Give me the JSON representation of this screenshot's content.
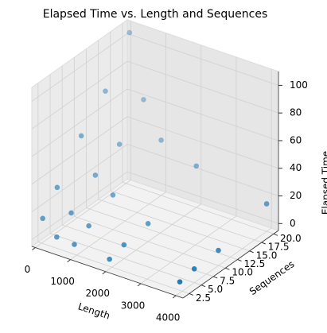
{
  "chart_data": {
    "type": "scatter3d",
    "title": "Elapsed Time vs. Length and Sequences",
    "xlabel": "Length",
    "ylabel": "Sequences",
    "zlabel": "Elapsed Time",
    "color": "#1f77b4",
    "x": [
      100,
      100,
      100,
      100,
      100,
      500,
      500,
      500,
      500,
      500,
      1000,
      1000,
      1000,
      1000,
      2000,
      2000,
      2000,
      2000,
      4000,
      4000,
      4000,
      4000
    ],
    "y": [
      2,
      5,
      10,
      15,
      20,
      2,
      5,
      10,
      15,
      20,
      2,
      5,
      10,
      20,
      2,
      5,
      10,
      20,
      2,
      5,
      10,
      20
    ],
    "z": [
      15,
      30,
      55,
      75,
      105,
      5,
      15,
      30,
      40,
      60,
      4,
      10,
      20,
      35,
      2,
      5,
      8,
      25,
      3,
      5,
      6,
      15
    ],
    "xlim": [
      -100,
      4200
    ],
    "ylim": [
      1.2,
      21
    ],
    "zlim": [
      -5,
      110
    ],
    "xticks": [
      0,
      1000,
      2000,
      3000,
      4000
    ],
    "yticks": [
      2.5,
      {
        "value": 5,
        "label": "5.0"
      },
      7.5,
      {
        "value": 10,
        "label": "10.0"
      },
      12.5,
      {
        "value": 15,
        "label": "15.0"
      },
      17.5,
      {
        "value": 20,
        "label": "20.0"
      }
    ],
    "zticks": [
      0,
      20,
      40,
      60,
      80,
      100
    ],
    "grid": true
  }
}
